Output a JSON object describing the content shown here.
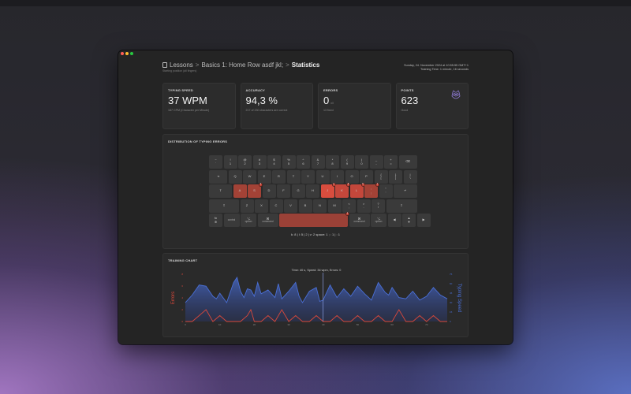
{
  "header": {
    "breadcrumb": {
      "root": "Lessons",
      "lesson": "Basics 1: Home Row asdf jkl;",
      "current": "Statistics"
    },
    "subtitle": "Starting position (all fingers)",
    "date": "Sunday, 24. November 2024 at 10:55:55 GMT+1",
    "training_time": "Training Time: 1 minute, 16 seconds"
  },
  "cards": [
    {
      "title": "TYPING SPEED",
      "value": "37 WPM",
      "unit": "",
      "sub": "187 CPM (Character per Minute)"
    },
    {
      "title": "ACCURACY",
      "value": "94,3 %",
      "unit": "",
      "sub": "217 of 230 characters are correct"
    },
    {
      "title": "ERRORS",
      "value": "0",
      "unit": "x/l",
      "sub": "13 fixed"
    },
    {
      "title": "POINTS",
      "value": "623",
      "unit": "",
      "sub": "Good"
    }
  ],
  "errors_panel": {
    "title": "DISTRIBUTION OF TYPING ERRORS",
    "summary": "k: 8 | l: 5 | 2 | v: 2  space: 1 ; : 1 | : 1"
  },
  "keyboard": {
    "rows": [
      [
        {
          "top": "~",
          "bot": "`"
        },
        {
          "top": "!",
          "bot": "1"
        },
        {
          "top": "@",
          "bot": "2"
        },
        {
          "top": "#",
          "bot": "3"
        },
        {
          "top": "$",
          "bot": "4"
        },
        {
          "top": "%",
          "bot": "5"
        },
        {
          "top": "^",
          "bot": "6"
        },
        {
          "top": "&",
          "bot": "7"
        },
        {
          "top": "*",
          "bot": "8"
        },
        {
          "top": "(",
          "bot": "9"
        },
        {
          "top": ")",
          "bot": "0"
        },
        {
          "top": "_",
          "bot": "-"
        },
        {
          "top": "+",
          "bot": "="
        },
        {
          "top": "",
          "bot": "⌫"
        }
      ],
      [
        {
          "top": "",
          "bot": "⇥"
        },
        {
          "top": "",
          "bot": "Q"
        },
        {
          "top": "",
          "bot": "W"
        },
        {
          "top": "",
          "bot": "E"
        },
        {
          "top": "",
          "bot": "R"
        },
        {
          "top": "",
          "bot": "T"
        },
        {
          "top": "",
          "bot": "Y"
        },
        {
          "top": "",
          "bot": "U"
        },
        {
          "top": "",
          "bot": "I"
        },
        {
          "top": "",
          "bot": "O"
        },
        {
          "top": "",
          "bot": "P"
        },
        {
          "top": "{",
          "bot": "["
        },
        {
          "top": "}",
          "bot": "]"
        },
        {
          "top": "|",
          "bot": "\\"
        }
      ],
      [
        {
          "top": "",
          "bot": "⇪"
        },
        {
          "top": "",
          "bot": "A"
        },
        {
          "top": "",
          "bot": "S"
        },
        {
          "top": "",
          "bot": "D"
        },
        {
          "top": "",
          "bot": "F"
        },
        {
          "top": "",
          "bot": "G"
        },
        {
          "top": "",
          "bot": "H"
        },
        {
          "top": "",
          "bot": "J"
        },
        {
          "top": "",
          "bot": "K"
        },
        {
          "top": "",
          "bot": "L"
        },
        {
          "top": ":",
          "bot": ";"
        },
        {
          "top": "\"",
          "bot": "'"
        },
        {
          "top": "",
          "bot": "↵"
        }
      ],
      [
        {
          "top": "",
          "bot": "⇧"
        },
        {
          "top": "",
          "bot": "Z"
        },
        {
          "top": "",
          "bot": "X"
        },
        {
          "top": "",
          "bot": "C"
        },
        {
          "top": "",
          "bot": "V"
        },
        {
          "top": "",
          "bot": "B"
        },
        {
          "top": "",
          "bot": "N"
        },
        {
          "top": "",
          "bot": "M"
        },
        {
          "top": "<",
          "bot": ","
        },
        {
          "top": ">",
          "bot": "."
        },
        {
          "top": "?",
          "bot": "/"
        },
        {
          "top": "",
          "bot": "⇧"
        }
      ],
      [
        {
          "top": "fn",
          "bot": "⊕"
        },
        {
          "top": "",
          "bot": "control"
        },
        {
          "top": "⌥",
          "bot": "option"
        },
        {
          "top": "⌘",
          "bot": "command"
        },
        {
          "top": "",
          "bot": ""
        },
        {
          "top": "⌘",
          "bot": "command"
        },
        {
          "top": "⌥",
          "bot": "option"
        },
        {
          "top": "",
          "bot": "◀"
        },
        {
          "top": "▲",
          "bot": "▼"
        },
        {
          "top": "",
          "bot": "▶"
        }
      ]
    ]
  },
  "chart_panel": {
    "title": "TRAINING CHART",
    "tooltip": "Time: 40 s, Speed: 34 wpm, Errors: 0",
    "y_left_label": "Errors",
    "y_right_label": "Typing Speed"
  },
  "chart_data": {
    "type": "area",
    "x_ticks": [
      "0",
      "10",
      "20",
      "30",
      "40",
      "50",
      "60",
      "70"
    ],
    "y_left_ticks": [
      "0",
      "2",
      "4",
      "6",
      "8"
    ],
    "y_right_ticks": [
      "0",
      "15",
      "30",
      "45",
      "60",
      "75"
    ],
    "ylim_left": [
      0,
      8
    ],
    "ylim_right": [
      0,
      75
    ],
    "xlim": [
      0,
      76
    ],
    "series": [
      {
        "name": "Typing Speed",
        "color": "#4a6fd6",
        "x": [
          0,
          2,
          4,
          6,
          8,
          9,
          10,
          12,
          14,
          15,
          16,
          17,
          18,
          19,
          20,
          21,
          22,
          24,
          26,
          27,
          28,
          30,
          32,
          33,
          34,
          36,
          38,
          39,
          40,
          42,
          44,
          46,
          48,
          50,
          52,
          54,
          56,
          58,
          59,
          60,
          62,
          64,
          66,
          68,
          70,
          72,
          74,
          76
        ],
        "values": [
          30,
          42,
          58,
          56,
          40,
          36,
          45,
          30,
          62,
          70,
          48,
          38,
          52,
          50,
          40,
          62,
          44,
          50,
          38,
          60,
          36,
          48,
          62,
          40,
          30,
          48,
          54,
          32,
          34,
          58,
          38,
          52,
          40,
          56,
          44,
          34,
          62,
          46,
          42,
          54,
          38,
          36,
          48,
          34,
          40,
          54,
          42,
          36
        ]
      },
      {
        "name": "Errors",
        "color": "#d8483b",
        "x": [
          0,
          2,
          4,
          6,
          7,
          8,
          10,
          12,
          14,
          16,
          18,
          19,
          20,
          22,
          24,
          26,
          28,
          29,
          30,
          32,
          34,
          36,
          38,
          40,
          42,
          44,
          46,
          48,
          50,
          52,
          54,
          56,
          58,
          60,
          62,
          64,
          66,
          68,
          70,
          72,
          74,
          76
        ],
        "values": [
          0,
          0,
          1,
          2,
          1,
          0,
          1,
          0,
          0,
          0,
          1,
          2,
          0,
          0,
          1,
          0,
          2,
          1,
          0,
          1,
          0,
          0,
          1,
          0,
          0,
          1,
          0,
          0,
          1,
          0,
          0,
          1,
          0,
          0,
          2,
          0,
          0,
          1,
          0,
          1,
          0,
          0
        ]
      }
    ]
  },
  "colors": {
    "speed": "#4a6fd6",
    "errors": "#d8483b",
    "owl": "#8f7bd6"
  }
}
